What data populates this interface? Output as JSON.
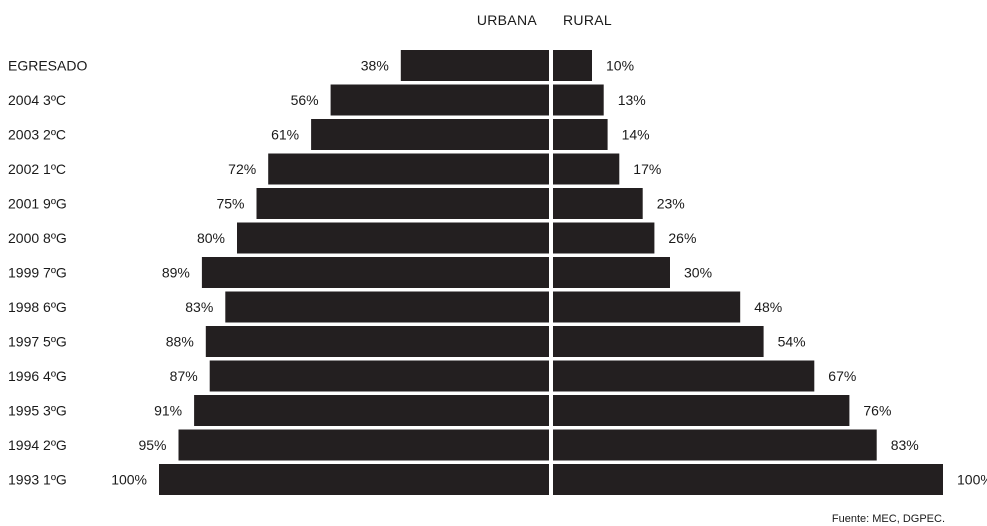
{
  "chart_data": {
    "type": "bar",
    "orientation": "horizontal",
    "layout": "back-to-back",
    "categories": [
      "EGRESADO",
      "2004 3ºC",
      "2003 2ºC",
      "2002 1ºC",
      "2001 9ºG",
      "2000 8ºG",
      "1999 7ºG",
      "1998 6ºG",
      "1997 5ºG",
      "1996 4ºG",
      "1995 3ºG",
      "1994 2ºG",
      "1993 1ºG"
    ],
    "series": [
      {
        "name": "URBANA",
        "side": "left",
        "values": [
          38,
          56,
          61,
          72,
          75,
          80,
          89,
          83,
          88,
          87,
          91,
          95,
          100
        ],
        "labels": [
          "38%",
          "56%",
          "61%",
          "72%",
          "75%",
          "80%",
          "89%",
          "83%",
          "88%",
          "87%",
          "91%",
          "95%",
          "100%"
        ]
      },
      {
        "name": "RURAL",
        "side": "right",
        "values": [
          10,
          13,
          14,
          17,
          23,
          26,
          30,
          48,
          54,
          67,
          76,
          83,
          100
        ],
        "labels": [
          "10%",
          "13%",
          "14%",
          "17%",
          "23%",
          "26%",
          "30%",
          "48%",
          "54%",
          "67%",
          "76%",
          "83%",
          "100%"
        ]
      }
    ],
    "xlim": [
      0,
      100
    ],
    "unit": "%",
    "bar_color": "#231f20",
    "grid": false,
    "legend": "top-center"
  },
  "source": "Fuente: MEC, DGPEC."
}
